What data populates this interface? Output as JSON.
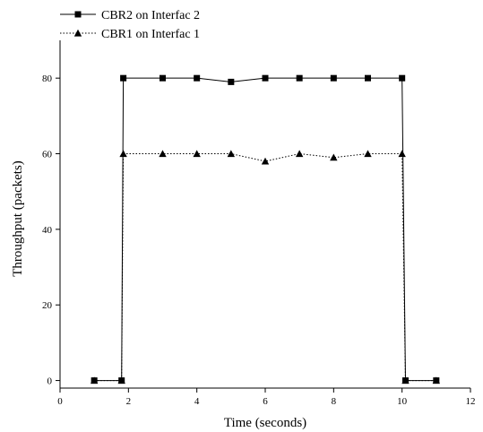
{
  "chart_data": {
    "type": "line",
    "xlabel": "Time (seconds)",
    "ylabel": "Throughput (packets)",
    "xlim": [
      0,
      12
    ],
    "ylim": [
      -2,
      90
    ],
    "x_ticks": [
      "0",
      "2",
      "4",
      "6",
      "8",
      "10",
      "12"
    ],
    "y_ticks": [
      "0",
      "20",
      "40",
      "60",
      "80"
    ],
    "grid": false,
    "legend_position": "top-left",
    "series": [
      {
        "name": "CBR2 on Interfac 2",
        "marker": "square",
        "line_style": "solid",
        "color": "#000000",
        "x": [
          1.0,
          1.8,
          1.85,
          3,
          4,
          5,
          6,
          7,
          8,
          9,
          10,
          10.1,
          11
        ],
        "y": [
          0,
          0,
          80,
          80,
          80,
          79,
          80,
          80,
          80,
          80,
          80,
          0,
          0
        ]
      },
      {
        "name": "CBR1 on Interfac 1",
        "marker": "triangle",
        "line_style": "dotted",
        "color": "#000000",
        "x": [
          1.0,
          1.8,
          1.85,
          3,
          4,
          5,
          6,
          7,
          8,
          9,
          10,
          10.1,
          11
        ],
        "y": [
          0,
          0,
          60,
          60,
          60,
          60,
          58,
          60,
          59,
          60,
          60,
          0,
          0
        ]
      }
    ]
  }
}
